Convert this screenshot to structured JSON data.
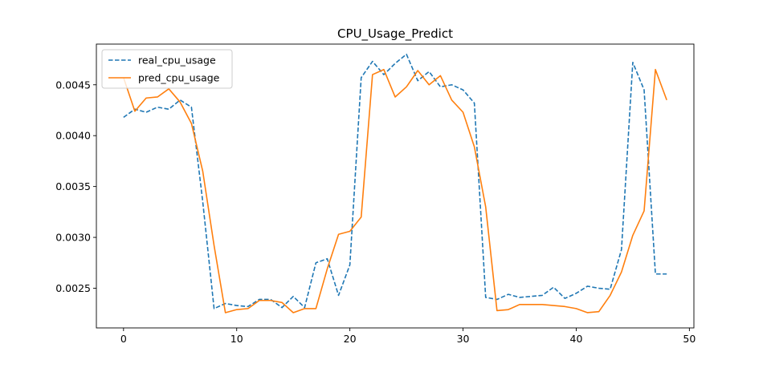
{
  "chart_data": {
    "type": "line",
    "title": "CPU_Usage_Predict",
    "xlabel": "",
    "ylabel": "",
    "xlim": [
      -2.4,
      50.4
    ],
    "ylim": [
      0.00211,
      0.0049
    ],
    "xticks": [
      0,
      10,
      20,
      30,
      40,
      50
    ],
    "yticks": [
      0.0025,
      0.003,
      0.0035,
      0.004,
      0.0045
    ],
    "ytick_labels": [
      "0.0025",
      "0.0030",
      "0.0035",
      "0.0040",
      "0.0045"
    ],
    "grid": false,
    "legend_position": "top-left",
    "series": [
      {
        "name": "real_cpu_usage",
        "style": "dashed",
        "color": "#1f77b4",
        "x": [
          0,
          1,
          2,
          3,
          4,
          5,
          6,
          7,
          8,
          9,
          10,
          11,
          12,
          13,
          14,
          15,
          16,
          17,
          18,
          19,
          20,
          21,
          22,
          23,
          24,
          25,
          26,
          27,
          28,
          29,
          30,
          31,
          32,
          33,
          34,
          35,
          36,
          37,
          38,
          39,
          40,
          41,
          42,
          43,
          44,
          45,
          46,
          47,
          48
        ],
        "values": [
          0.00418,
          0.00426,
          0.00423,
          0.00428,
          0.00426,
          0.00435,
          0.00428,
          0.00335,
          0.0023,
          0.00235,
          0.00233,
          0.00232,
          0.00239,
          0.00239,
          0.00231,
          0.00242,
          0.00231,
          0.00275,
          0.00279,
          0.00243,
          0.00273,
          0.00457,
          0.00473,
          0.0046,
          0.00471,
          0.0048,
          0.00454,
          0.00463,
          0.00448,
          0.0045,
          0.00445,
          0.00432,
          0.00241,
          0.00239,
          0.00244,
          0.00241,
          0.00242,
          0.00243,
          0.00251,
          0.0024,
          0.00245,
          0.00252,
          0.0025,
          0.00249,
          0.00288,
          0.00472,
          0.00445,
          0.00264,
          0.00264
        ]
      },
      {
        "name": "pred_cpu_usage",
        "style": "solid",
        "color": "#ff7f0e",
        "x": [
          0,
          1,
          2,
          3,
          4,
          5,
          6,
          7,
          8,
          9,
          10,
          11,
          12,
          13,
          14,
          15,
          16,
          17,
          18,
          19,
          20,
          21,
          22,
          23,
          24,
          25,
          26,
          27,
          28,
          29,
          30,
          31,
          32,
          33,
          34,
          35,
          36,
          37,
          38,
          39,
          40,
          41,
          42,
          43,
          44,
          45,
          46,
          47,
          48
        ],
        "values": [
          0.00457,
          0.00424,
          0.00437,
          0.00438,
          0.00446,
          0.00433,
          0.00412,
          0.00365,
          0.00292,
          0.00226,
          0.00229,
          0.0023,
          0.00238,
          0.00238,
          0.00236,
          0.00226,
          0.0023,
          0.0023,
          0.00269,
          0.00303,
          0.00306,
          0.0032,
          0.0046,
          0.00465,
          0.00438,
          0.00448,
          0.00464,
          0.0045,
          0.00459,
          0.00435,
          0.00423,
          0.00389,
          0.0033,
          0.00228,
          0.00229,
          0.00234,
          0.00234,
          0.00234,
          0.00233,
          0.00232,
          0.0023,
          0.00226,
          0.00227,
          0.00243,
          0.00266,
          0.00302,
          0.00326,
          0.00465,
          0.00435
        ]
      }
    ]
  }
}
